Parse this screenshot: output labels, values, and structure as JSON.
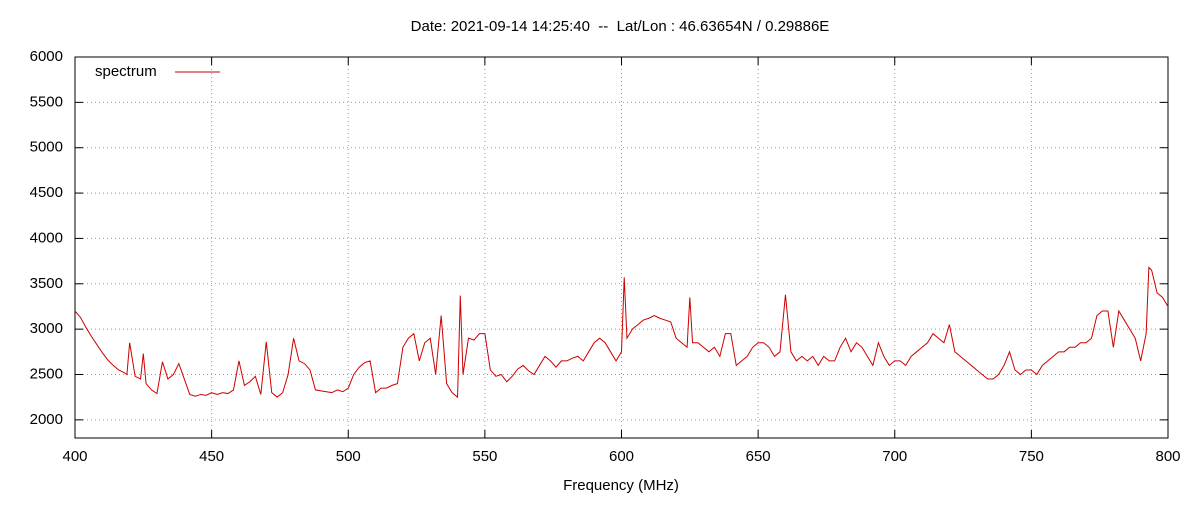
{
  "chart_data": {
    "type": "line",
    "title": "Date: 2021-09-14 14:25:40  --  Lat/Lon : 46.63654N / 0.29886E",
    "x_label": "Frequency (MHz)",
    "x": [
      400,
      402,
      404,
      406,
      408,
      410,
      412,
      414,
      416,
      418,
      419,
      420,
      422,
      424,
      425,
      426,
      428,
      430,
      432,
      434,
      436,
      438,
      440,
      442,
      444,
      446,
      448,
      450,
      452,
      454,
      456,
      458,
      460,
      462,
      464,
      466,
      468,
      470,
      472,
      474,
      476,
      478,
      480,
      482,
      484,
      486,
      488,
      490,
      492,
      494,
      496,
      498,
      500,
      502,
      504,
      506,
      508,
      510,
      512,
      514,
      516,
      518,
      520,
      522,
      524,
      526,
      528,
      530,
      532,
      534,
      536,
      538,
      540,
      541,
      542,
      544,
      546,
      548,
      550,
      552,
      554,
      556,
      558,
      560,
      562,
      564,
      566,
      568,
      570,
      572,
      574,
      576,
      578,
      580,
      582,
      584,
      586,
      588,
      590,
      592,
      594,
      596,
      598,
      600,
      601,
      602,
      604,
      606,
      608,
      610,
      612,
      614,
      616,
      618,
      620,
      622,
      624,
      625,
      626,
      628,
      630,
      632,
      634,
      636,
      638,
      640,
      642,
      644,
      646,
      648,
      650,
      652,
      654,
      656,
      658,
      660,
      662,
      664,
      666,
      668,
      670,
      672,
      674,
      676,
      678,
      680,
      682,
      684,
      686,
      688,
      690,
      692,
      694,
      696,
      698,
      700,
      702,
      704,
      706,
      708,
      710,
      712,
      714,
      716,
      718,
      720,
      722,
      724,
      726,
      728,
      730,
      732,
      734,
      736,
      738,
      740,
      742,
      744,
      746,
      748,
      750,
      752,
      754,
      756,
      758,
      760,
      762,
      764,
      766,
      768,
      770,
      772,
      774,
      776,
      778,
      780,
      782,
      784,
      786,
      788,
      790,
      792,
      793,
      794,
      796,
      798,
      800
    ],
    "series": [
      {
        "name": "spectrum",
        "color": "#cc0000",
        "values": [
          3200,
          3130,
          3020,
          2920,
          2830,
          2740,
          2660,
          2600,
          2550,
          2520,
          2500,
          2850,
          2480,
          2450,
          2730,
          2400,
          2330,
          2290,
          2640,
          2450,
          2500,
          2620,
          2450,
          2280,
          2260,
          2280,
          2270,
          2300,
          2280,
          2300,
          2290,
          2330,
          2650,
          2380,
          2420,
          2480,
          2280,
          2860,
          2300,
          2250,
          2300,
          2500,
          2900,
          2650,
          2620,
          2550,
          2330,
          2320,
          2310,
          2300,
          2330,
          2310,
          2350,
          2500,
          2580,
          2630,
          2650,
          2300,
          2350,
          2350,
          2380,
          2400,
          2800,
          2900,
          2950,
          2650,
          2850,
          2900,
          2500,
          3150,
          2400,
          2300,
          2250,
          3370,
          2500,
          2900,
          2880,
          2950,
          2950,
          2550,
          2480,
          2500,
          2420,
          2480,
          2560,
          2600,
          2540,
          2500,
          2600,
          2700,
          2650,
          2580,
          2650,
          2650,
          2680,
          2700,
          2650,
          2750,
          2850,
          2900,
          2850,
          2750,
          2650,
          2750,
          3570,
          2900,
          3000,
          3050,
          3100,
          3120,
          3150,
          3120,
          3100,
          3080,
          2900,
          2850,
          2800,
          3350,
          2850,
          2850,
          2800,
          2750,
          2800,
          2700,
          2950,
          2950,
          2600,
          2650,
          2700,
          2800,
          2850,
          2850,
          2800,
          2700,
          2750,
          3380,
          2750,
          2650,
          2700,
          2650,
          2700,
          2600,
          2700,
          2650,
          2650,
          2800,
          2900,
          2750,
          2850,
          2800,
          2700,
          2600,
          2850,
          2700,
          2600,
          2650,
          2650,
          2600,
          2700,
          2750,
          2800,
          2850,
          2950,
          2900,
          2850,
          3050,
          2750,
          2700,
          2650,
          2600,
          2550,
          2500,
          2450,
          2450,
          2500,
          2600,
          2750,
          2550,
          2500,
          2550,
          2550,
          2500,
          2600,
          2650,
          2700,
          2750,
          2750,
          2800,
          2800,
          2850,
          2850,
          2900,
          3150,
          3200,
          3200,
          2800,
          3200,
          3100,
          3000,
          2900,
          2650,
          2950,
          3680,
          3650,
          3400,
          3350,
          3250
        ]
      }
    ],
    "xlim": [
      400,
      800
    ],
    "xticks": [
      400,
      450,
      500,
      550,
      600,
      650,
      700,
      750,
      800
    ],
    "ylim": [
      1800,
      6000
    ],
    "yticks": [
      2000,
      2500,
      3000,
      3500,
      4000,
      4500,
      5000,
      5500,
      6000
    ],
    "grid": true,
    "legend": "top-left"
  }
}
